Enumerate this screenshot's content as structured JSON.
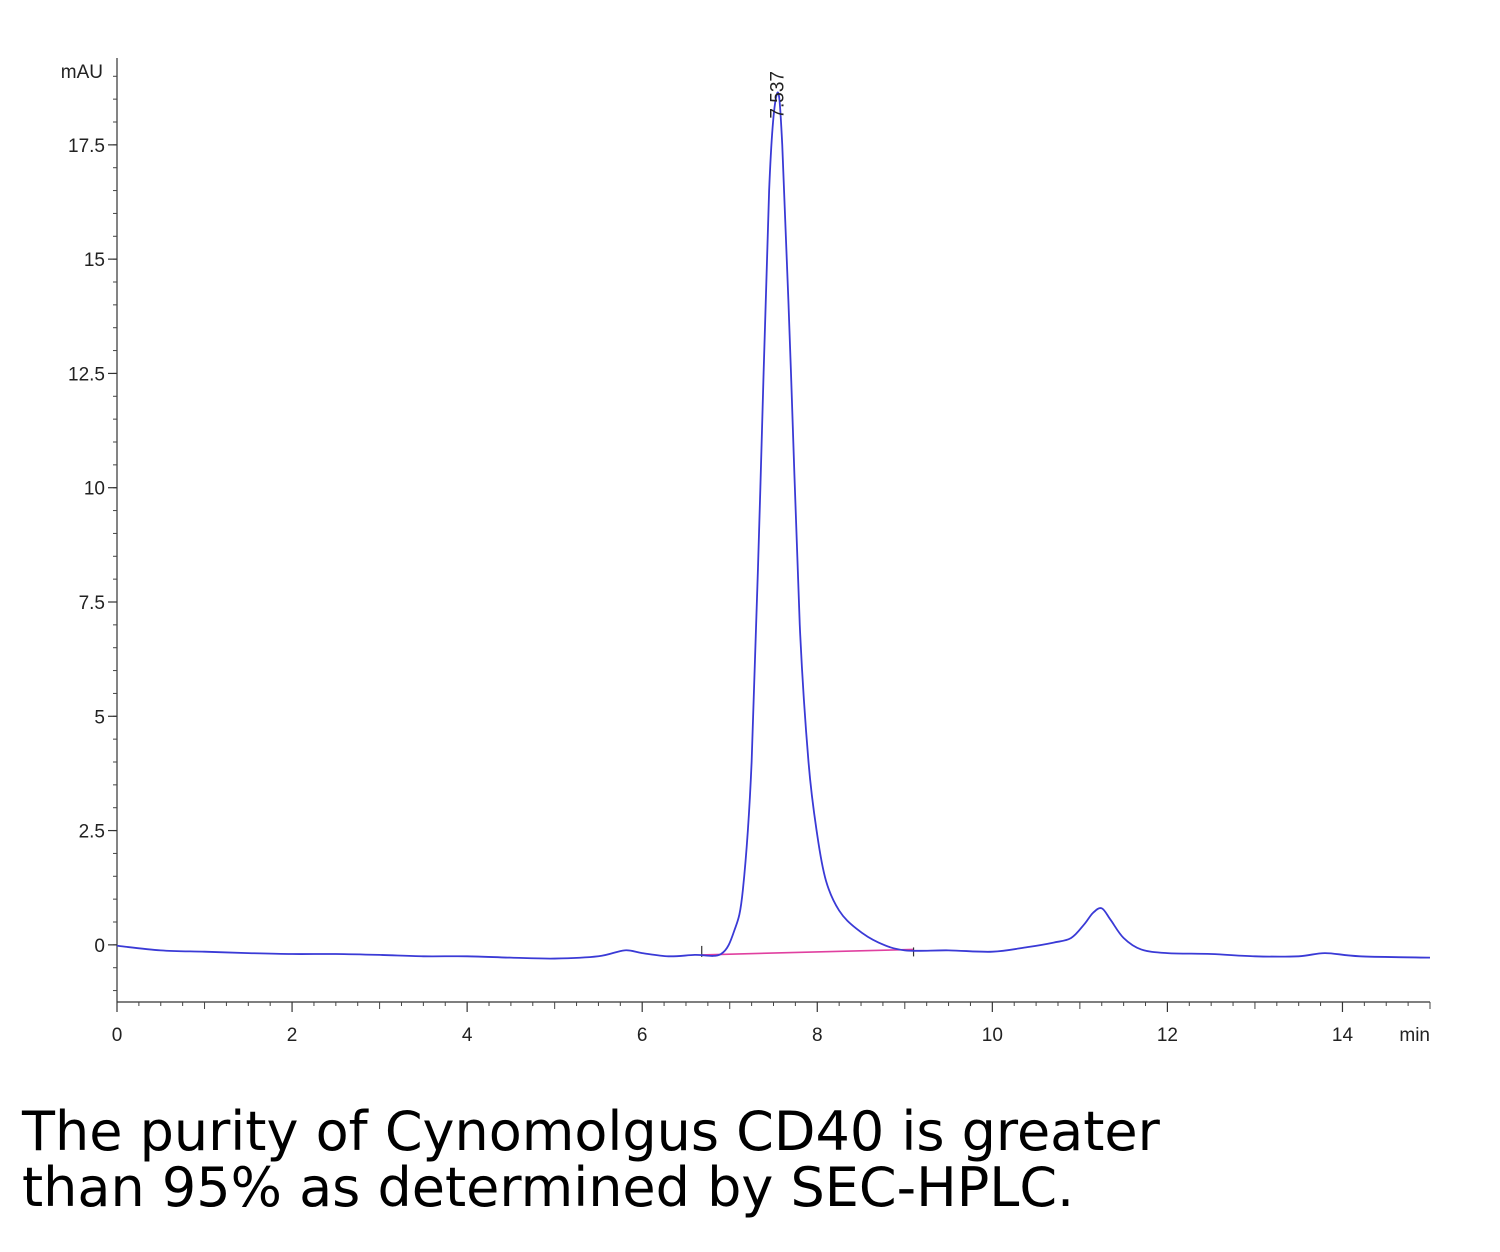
{
  "chart_data": {
    "type": "line",
    "title": "",
    "xlabel": "",
    "ylabel": "",
    "y_unit": "mAU",
    "x_unit": "min",
    "xlim": [
      0,
      15
    ],
    "ylim": [
      -1.25,
      19.4
    ],
    "x_ticks": [
      "0",
      "2",
      "4",
      "6",
      "8",
      "10",
      "12",
      "14"
    ],
    "y_ticks": [
      "0",
      "2.5",
      "5",
      "7.5",
      "10",
      "12.5",
      "15",
      "17.5"
    ],
    "grid": false,
    "series": [
      {
        "color": "#3a3ad6",
        "x": [
          0,
          0.5,
          1,
          1.5,
          2,
          2.5,
          3,
          3.5,
          4,
          4.5,
          5,
          5.5,
          5.8,
          6.0,
          6.3,
          6.6,
          6.9,
          7.05,
          7.15,
          7.25,
          7.35,
          7.45,
          7.537,
          7.6,
          7.7,
          7.8,
          7.9,
          8.0,
          8.1,
          8.25,
          8.45,
          8.7,
          9.0,
          9.5,
          10.0,
          10.4,
          10.7,
          10.9,
          11.05,
          11.15,
          11.25,
          11.35,
          11.5,
          11.7,
          12.0,
          12.5,
          13.0,
          13.5,
          13.8,
          14.2,
          15.0
        ],
        "y": [
          -0.02,
          -0.12,
          -0.15,
          -0.18,
          -0.2,
          -0.2,
          -0.22,
          -0.25,
          -0.25,
          -0.28,
          -0.3,
          -0.25,
          -0.12,
          -0.18,
          -0.25,
          -0.22,
          -0.2,
          0.3,
          1.2,
          4.0,
          10.0,
          16.5,
          18.6,
          17.5,
          12.5,
          7.0,
          4.0,
          2.4,
          1.4,
          0.75,
          0.35,
          0.05,
          -0.12,
          -0.12,
          -0.15,
          -0.05,
          0.05,
          0.15,
          0.45,
          0.7,
          0.8,
          0.55,
          0.15,
          -0.1,
          -0.18,
          -0.2,
          -0.25,
          -0.25,
          -0.18,
          -0.25,
          -0.28
        ]
      }
    ],
    "baseline": {
      "color": "#e040a0",
      "x": [
        6.68,
        9.1
      ],
      "y": [
        -0.22,
        -0.1
      ]
    },
    "peak_labels": [
      {
        "text": "7.537",
        "x": 7.537,
        "y": 18.6
      }
    ]
  },
  "caption": {
    "line1": "The purity of Cynomolgus CD40 is greater",
    "line2": "than 95% as determined by SEC-HPLC."
  }
}
